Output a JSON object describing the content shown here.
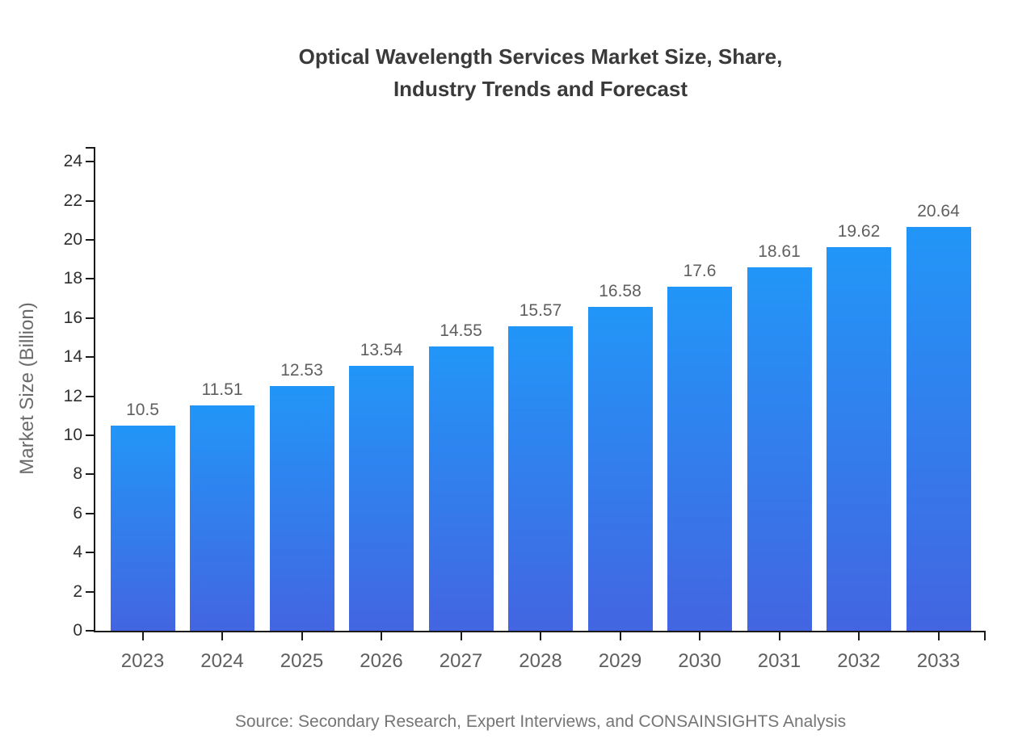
{
  "figure": {
    "title_line1": "Optical Wavelength Services Market Size, Share,",
    "title_line2": "Industry Trends and Forecast",
    "source": "Source: Secondary Research, Expert Interviews, and CONSAINSIGHTS Analysis"
  },
  "chart_data": {
    "type": "bar",
    "title": "Optical Wavelength Services Market Size, Share, Industry Trends and Forecast",
    "categories": [
      "2023",
      "2024",
      "2025",
      "2026",
      "2027",
      "2028",
      "2029",
      "2030",
      "2031",
      "2032",
      "2033"
    ],
    "values": [
      10.5,
      11.51,
      12.53,
      13.54,
      14.55,
      15.57,
      16.58,
      17.6,
      18.61,
      19.62,
      20.64
    ],
    "xlabel": "",
    "ylabel": "Market Size (Billion)",
    "ylim": [
      0,
      24
    ],
    "ytick_step": 2,
    "axis_render_max": 24.75,
    "grid": false,
    "legend": false,
    "value_labels_shown": true,
    "source": "Source: Secondary Research, Expert Interviews, and CONSAINSIGHTS Analysis",
    "colors": {
      "bar_gradient_top": "#2296f8",
      "bar_gradient_bottom": "#4365e1",
      "axis": "#1a1a1a",
      "title_text": "#3a3a3a",
      "label_text": "#5f5f5f",
      "tick_text": "#303030",
      "source_text": "#757575"
    }
  }
}
